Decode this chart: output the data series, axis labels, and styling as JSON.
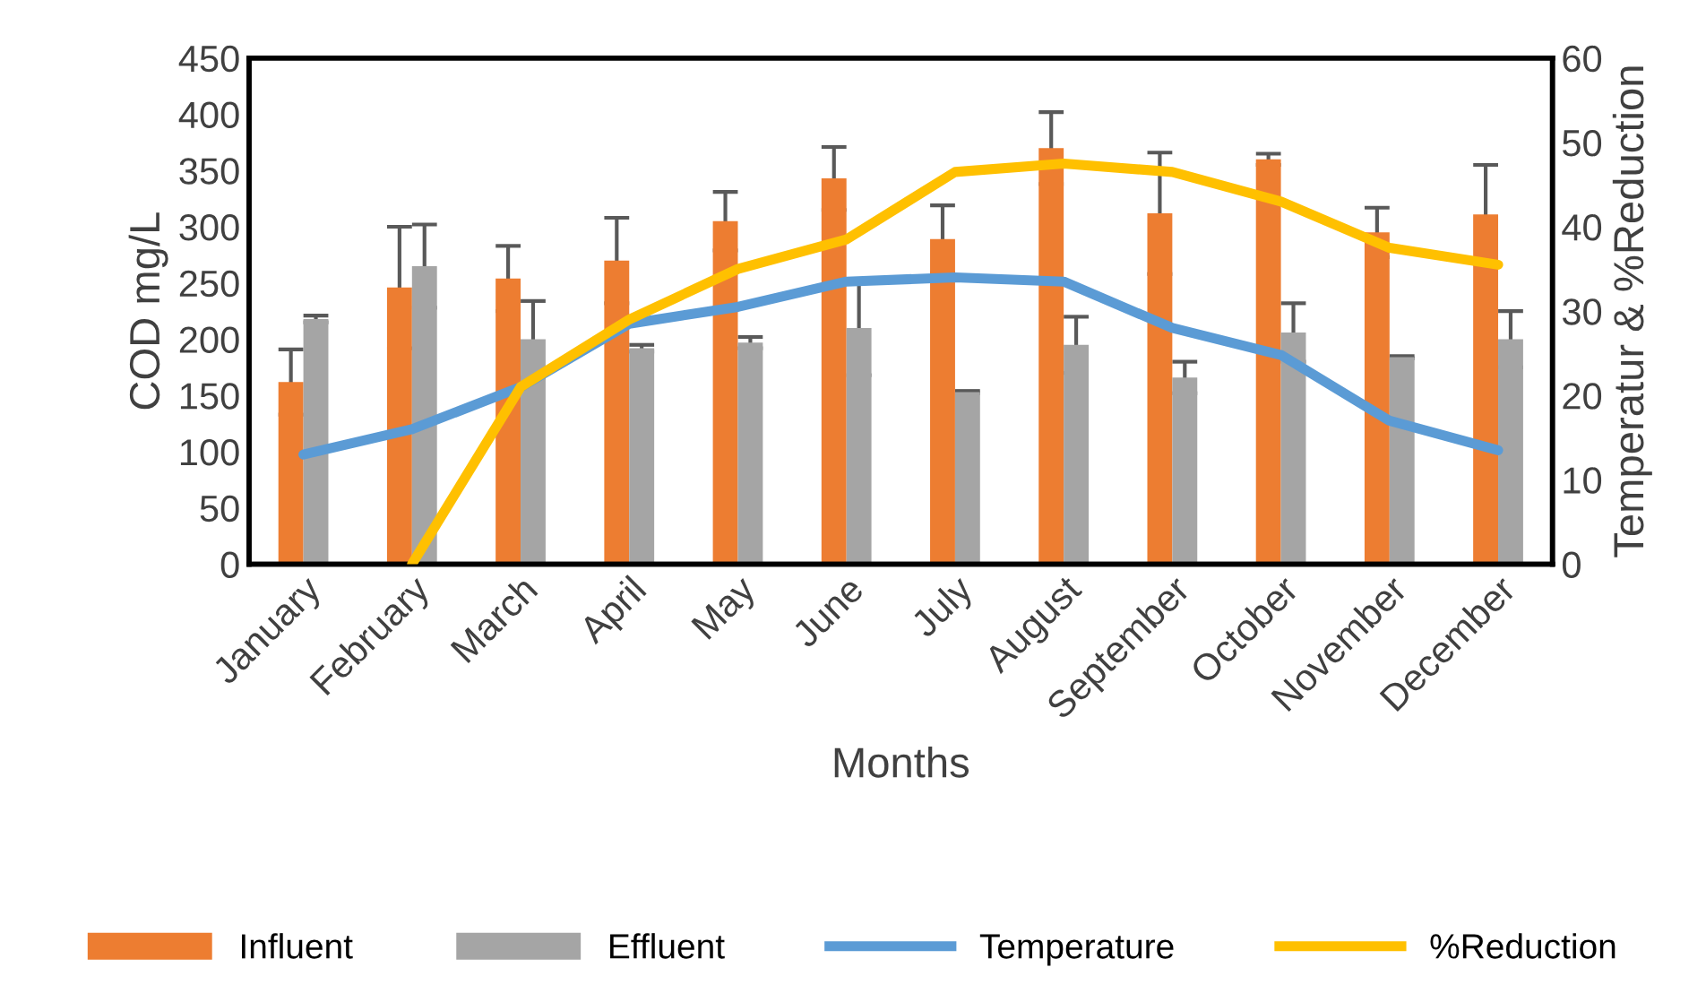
{
  "chart_data": {
    "type": "bar",
    "xlabel": "Months",
    "ylabel": "COD mg/L",
    "y2label": "Temperatur & %Reduction",
    "categories": [
      "January",
      "February",
      "March",
      "April",
      "May",
      "June",
      "July",
      "August",
      "September",
      "October",
      "November",
      "December"
    ],
    "series": [
      {
        "name": "Influent",
        "color": "#ed7d31",
        "values": [
          162,
          246,
          254,
          270,
          305,
          343,
          289,
          370,
          312,
          360,
          295,
          311
        ],
        "errors": [
          29,
          54,
          29,
          38,
          26,
          28,
          30,
          32,
          54,
          5,
          22,
          44
        ]
      },
      {
        "name": "Effluent",
        "color": "#a5a5a5",
        "values": [
          218,
          265,
          200,
          192,
          197,
          210,
          153,
          195,
          166,
          206,
          184,
          200
        ],
        "errors": [
          3,
          37,
          34,
          3,
          5,
          42,
          1,
          25,
          14,
          26,
          1,
          25
        ]
      },
      {
        "name": "Temperature",
        "type": "line",
        "axis": "y2",
        "color": "#5b9bd5",
        "values": [
          13,
          16,
          21,
          28.5,
          30.5,
          33.5,
          34,
          33.5,
          28,
          24.8,
          17,
          13.5
        ]
      },
      {
        "name": "%Reduction",
        "type": "line",
        "axis": "y2",
        "color": "#ffc000",
        "values": [
          null,
          0,
          21,
          29,
          35,
          38.5,
          46.5,
          47.5,
          46.5,
          43,
          37.5,
          35.5
        ]
      }
    ],
    "ylim": [
      0,
      450
    ],
    "yticks": [
      0,
      50,
      100,
      150,
      200,
      250,
      300,
      350,
      400,
      450
    ],
    "y2lim": [
      0,
      60
    ],
    "y2ticks": [
      0,
      10,
      20,
      30,
      40,
      50,
      60
    ],
    "legend": "bottom",
    "grid": false,
    "marker": "none",
    "line_style": "solid"
  }
}
